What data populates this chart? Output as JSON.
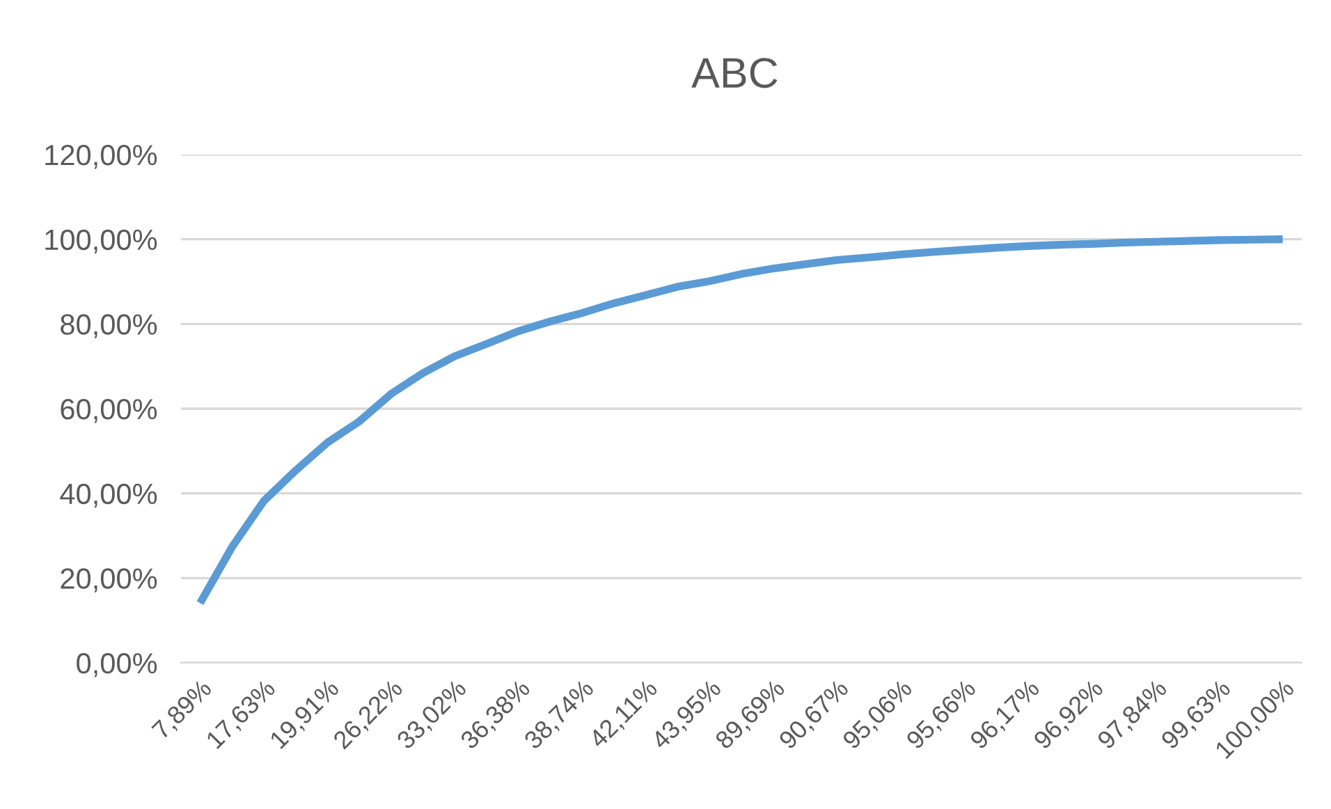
{
  "chart_data": {
    "type": "line",
    "title": "ABC",
    "categories": [
      "7,89%",
      null,
      "17,63%",
      null,
      "19,91%",
      null,
      "26,22%",
      null,
      "33,02%",
      null,
      "36,38%",
      null,
      "38,74%",
      null,
      "42,11%",
      null,
      "43,95%",
      null,
      "89,69%",
      null,
      "90,67%",
      null,
      "95,06%",
      null,
      "95,66%",
      null,
      "96,17%",
      null,
      "96,92%",
      null,
      "97,84%",
      null,
      "99,63%",
      null,
      "100,00%"
    ],
    "series": [
      {
        "color": "#5b9bd5",
        "values": [
          14.1,
          27.3,
          38.2,
          45.4,
          52,
          57,
          63.5,
          68.4,
          72.4,
          75.3,
          78.3,
          80.6,
          82.6,
          84.9,
          86.8,
          88.8,
          90.1,
          91.8,
          93.1,
          94.1,
          95.1,
          95.7,
          96.4,
          97.0,
          97.5,
          98.0,
          98.4,
          98.7,
          98.9,
          99.2,
          99.4,
          99.6,
          99.8,
          99.9,
          100
        ]
      }
    ],
    "ylim": [
      0,
      120
    ],
    "yticks": [
      {
        "value": 0,
        "label": "0,00%"
      },
      {
        "value": 20,
        "label": "20,00%"
      },
      {
        "value": 40,
        "label": "40,00%"
      },
      {
        "value": 60,
        "label": "60,00%"
      },
      {
        "value": 80,
        "label": "80,00%"
      },
      {
        "value": 100,
        "label": "100,00%"
      },
      {
        "value": 120,
        "label": "120,00%"
      }
    ],
    "grid": "y",
    "legend": false,
    "marker": "none",
    "line_style": "solid"
  }
}
